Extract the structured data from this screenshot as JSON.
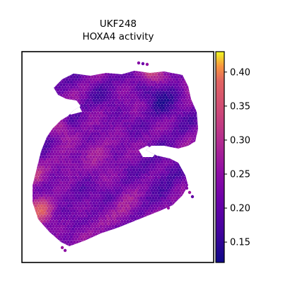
{
  "chart_data": {
    "type": "heatmap",
    "title": [
      "UKF248",
      "HOXA4 activity"
    ],
    "xlabel": "",
    "ylabel": "",
    "grid": false,
    "colormap": "plasma",
    "colorbar": {
      "range": [
        0.12,
        0.43
      ],
      "ticks": [
        0.15,
        0.2,
        0.25,
        0.3,
        0.35,
        0.4
      ],
      "tick_labels": [
        "0.15",
        "0.20",
        "0.25",
        "0.30",
        "0.35",
        "0.40"
      ]
    },
    "values_summary": {
      "typical_range": [
        0.18,
        0.3
      ],
      "high_regions": [
        "left edge",
        "top-right edge"
      ],
      "low_regions": [
        "upper right interior"
      ]
    },
    "colors": {
      "low": "#0d0887",
      "mid": "#cc4778",
      "high": "#f0f921",
      "frame": "#000000"
    }
  }
}
